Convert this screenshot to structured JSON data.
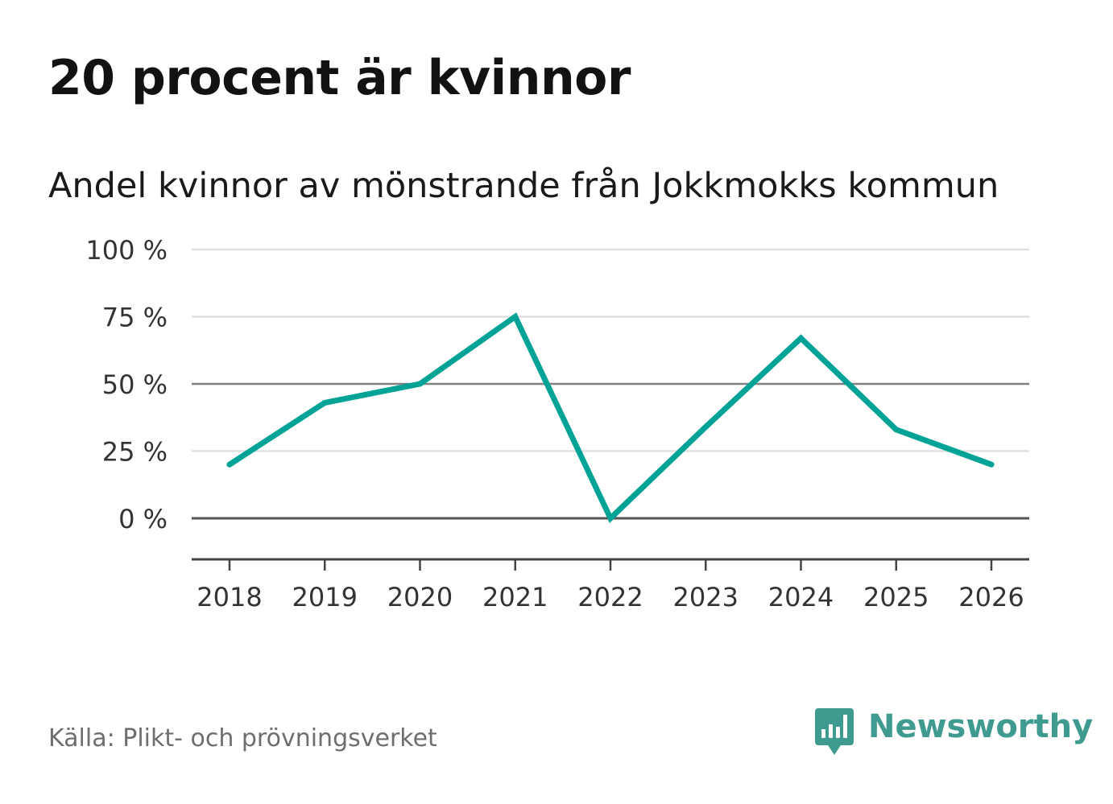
{
  "title": "20 procent är kvinnor",
  "subtitle": "Andel kvinnor av mönstrande från Jokkmokks kommun",
  "source": "Källa: Plikt- och prövningsverket",
  "brand": {
    "name": "Newsworthy",
    "icon": "newsworthy-logo-icon",
    "color": "#3f9a8f"
  },
  "chart_data": {
    "type": "line",
    "title": "Andel kvinnor av mönstrande från Jokkmokks kommun",
    "xlabel": "",
    "ylabel": "",
    "x": [
      "2018",
      "2019",
      "2020",
      "2021",
      "2022",
      "2023",
      "2024",
      "2025",
      "2026"
    ],
    "series": [
      {
        "name": "Andel kvinnor",
        "color": "#00a396",
        "values": [
          20,
          43,
          50,
          75,
          0,
          34,
          67,
          33,
          20
        ]
      }
    ],
    "ylim": [
      -15,
      100
    ],
    "yticks": [
      100,
      75,
      50,
      25,
      0
    ],
    "ytick_labels": [
      "100 %",
      "75 %",
      "50 %",
      "25 %",
      "0 %"
    ],
    "grid": true
  }
}
